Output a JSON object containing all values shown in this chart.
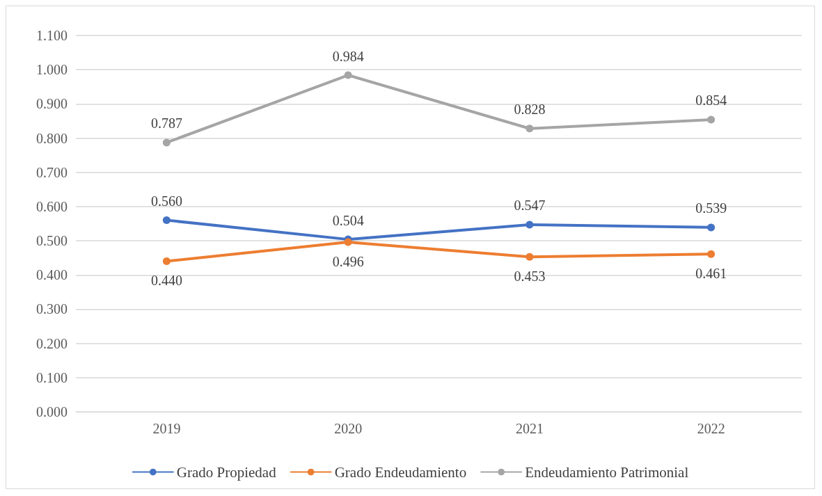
{
  "chart_data": {
    "type": "line",
    "categories": [
      "2019",
      "2020",
      "2021",
      "2022"
    ],
    "series": [
      {
        "name": "Grado Propiedad",
        "color": "#4472c4",
        "values": [
          0.56,
          0.504,
          0.547,
          0.539
        ],
        "value_labels": [
          "0.560",
          "0.504",
          "0.547",
          "0.539"
        ]
      },
      {
        "name": "Grado Endeudamiento",
        "color": "#ed7d31",
        "values": [
          0.44,
          0.496,
          0.453,
          0.461
        ],
        "value_labels": [
          "0.440",
          "0.496",
          "0.453",
          "0.461"
        ]
      },
      {
        "name": "Endeudamiento Patrimonial",
        "color": "#a5a5a5",
        "values": [
          0.787,
          0.984,
          0.828,
          0.854
        ],
        "value_labels": [
          "0.787",
          "0.984",
          "0.828",
          "0.854"
        ]
      }
    ],
    "ylim": [
      0,
      1.1
    ],
    "yticks": [
      {
        "value": 0,
        "label": "0.000"
      },
      {
        "value": 0.1,
        "label": "0.100"
      },
      {
        "value": 0.2,
        "label": "0.200"
      },
      {
        "value": 0.3,
        "label": "0.300"
      },
      {
        "value": 0.4,
        "label": "0.400"
      },
      {
        "value": 0.5,
        "label": "0.500"
      },
      {
        "value": 0.6,
        "label": "0.600"
      },
      {
        "value": 0.7,
        "label": "0.700"
      },
      {
        "value": 0.8,
        "label": "0.800"
      },
      {
        "value": 0.9,
        "label": "0.900"
      },
      {
        "value": 1,
        "label": "1.000"
      },
      {
        "value": 1.1,
        "label": "1.100"
      }
    ],
    "grid": "y",
    "legend": "bottom",
    "marker": "circle",
    "line_style": "solid"
  }
}
